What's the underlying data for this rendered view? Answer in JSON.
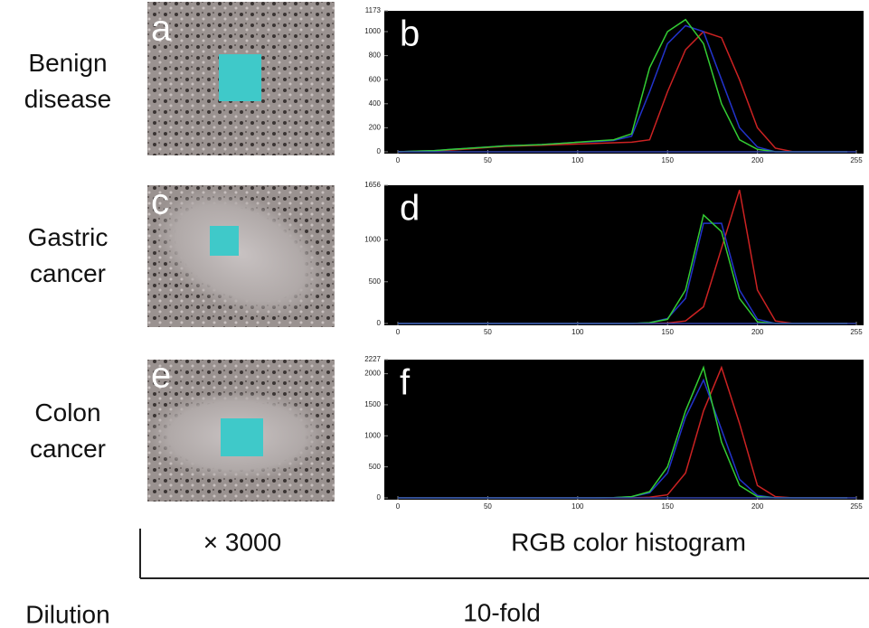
{
  "rows": [
    {
      "label": "Benign disease",
      "panel": "a"
    },
    {
      "label": "Gastric cancer",
      "panel": "c"
    },
    {
      "label": "Colon cancer",
      "panel": "e"
    }
  ],
  "chart_data": [
    {
      "type": "line",
      "title": "b",
      "x": [
        0,
        10,
        20,
        30,
        40,
        50,
        60,
        70,
        80,
        90,
        100,
        110,
        120,
        130,
        140,
        150,
        160,
        170,
        180,
        190,
        200,
        210,
        220,
        230,
        240,
        250
      ],
      "xlim": [
        0,
        255
      ],
      "xticks": [
        0,
        50,
        100,
        150,
        200,
        255
      ],
      "ylim": [
        0,
        1173
      ],
      "yticks": [
        0,
        200,
        400,
        600,
        800,
        1000,
        1173
      ],
      "series": [
        {
          "color": "#cc2222",
          "values": [
            0,
            3,
            8,
            15,
            25,
            35,
            45,
            50,
            55,
            60,
            65,
            70,
            75,
            80,
            100,
            500,
            850,
            1000,
            950,
            600,
            200,
            30,
            0,
            0,
            0,
            0
          ]
        },
        {
          "color": "#2233cc",
          "values": [
            0,
            5,
            10,
            20,
            30,
            40,
            50,
            55,
            60,
            70,
            80,
            85,
            95,
            130,
            500,
            900,
            1050,
            1000,
            600,
            200,
            40,
            0,
            0,
            0,
            0,
            0
          ]
        },
        {
          "color": "#33cc33",
          "values": [
            0,
            5,
            10,
            20,
            30,
            40,
            50,
            55,
            60,
            70,
            80,
            90,
            100,
            150,
            700,
            1000,
            1100,
            900,
            400,
            100,
            20,
            0,
            0,
            0,
            0,
            0
          ]
        }
      ]
    },
    {
      "type": "line",
      "title": "d",
      "x": [
        0,
        10,
        20,
        30,
        40,
        50,
        60,
        70,
        80,
        90,
        100,
        110,
        120,
        130,
        140,
        150,
        160,
        170,
        180,
        190,
        200,
        210,
        220,
        230,
        240,
        250
      ],
      "xlim": [
        0,
        255
      ],
      "xticks": [
        0,
        50,
        100,
        150,
        200,
        255
      ],
      "ylim": [
        0,
        1656
      ],
      "yticks": [
        0,
        500,
        1000,
        1656
      ],
      "series": [
        {
          "color": "#cc2222",
          "values": [
            0,
            0,
            0,
            0,
            0,
            0,
            0,
            0,
            0,
            0,
            0,
            0,
            0,
            0,
            0,
            5,
            30,
            200,
            900,
            1600,
            400,
            30,
            0,
            0,
            0,
            0
          ]
        },
        {
          "color": "#2233cc",
          "values": [
            0,
            0,
            0,
            0,
            0,
            0,
            0,
            0,
            0,
            0,
            0,
            0,
            0,
            0,
            10,
            60,
            300,
            1200,
            1200,
            400,
            50,
            0,
            0,
            0,
            0,
            0
          ]
        },
        {
          "color": "#33cc33",
          "values": [
            0,
            0,
            0,
            0,
            0,
            0,
            0,
            0,
            0,
            0,
            0,
            0,
            0,
            0,
            10,
            50,
            400,
            1300,
            1100,
            300,
            20,
            0,
            0,
            0,
            0,
            0
          ]
        }
      ]
    },
    {
      "type": "line",
      "title": "f",
      "x": [
        0,
        10,
        20,
        30,
        40,
        50,
        60,
        70,
        80,
        90,
        100,
        110,
        120,
        130,
        140,
        150,
        160,
        170,
        180,
        190,
        200,
        210,
        220,
        230,
        240,
        250
      ],
      "xlim": [
        0,
        255
      ],
      "xticks": [
        0,
        50,
        100,
        150,
        200,
        255
      ],
      "ylim": [
        0,
        2227
      ],
      "yticks": [
        0,
        500,
        1000,
        1500,
        2000,
        2227
      ],
      "series": [
        {
          "color": "#cc2222",
          "values": [
            0,
            0,
            0,
            0,
            0,
            0,
            0,
            0,
            0,
            0,
            0,
            0,
            0,
            0,
            10,
            50,
            400,
            1400,
            2100,
            1200,
            200,
            20,
            0,
            0,
            0,
            0
          ]
        },
        {
          "color": "#2233cc",
          "values": [
            0,
            0,
            0,
            0,
            0,
            0,
            0,
            0,
            0,
            0,
            0,
            0,
            5,
            20,
            80,
            400,
            1300,
            1900,
            1100,
            300,
            40,
            0,
            0,
            0,
            0,
            0
          ]
        },
        {
          "color": "#33cc33",
          "values": [
            0,
            0,
            0,
            0,
            0,
            0,
            0,
            0,
            0,
            0,
            0,
            0,
            5,
            20,
            100,
            500,
            1400,
            2100,
            900,
            200,
            20,
            0,
            0,
            0,
            0,
            0
          ]
        }
      ]
    }
  ],
  "footer": {
    "magnification": "× 3000",
    "histogram_label": "RGB color histogram",
    "dilution_label": "Dilution",
    "dilution": "10-fold"
  }
}
